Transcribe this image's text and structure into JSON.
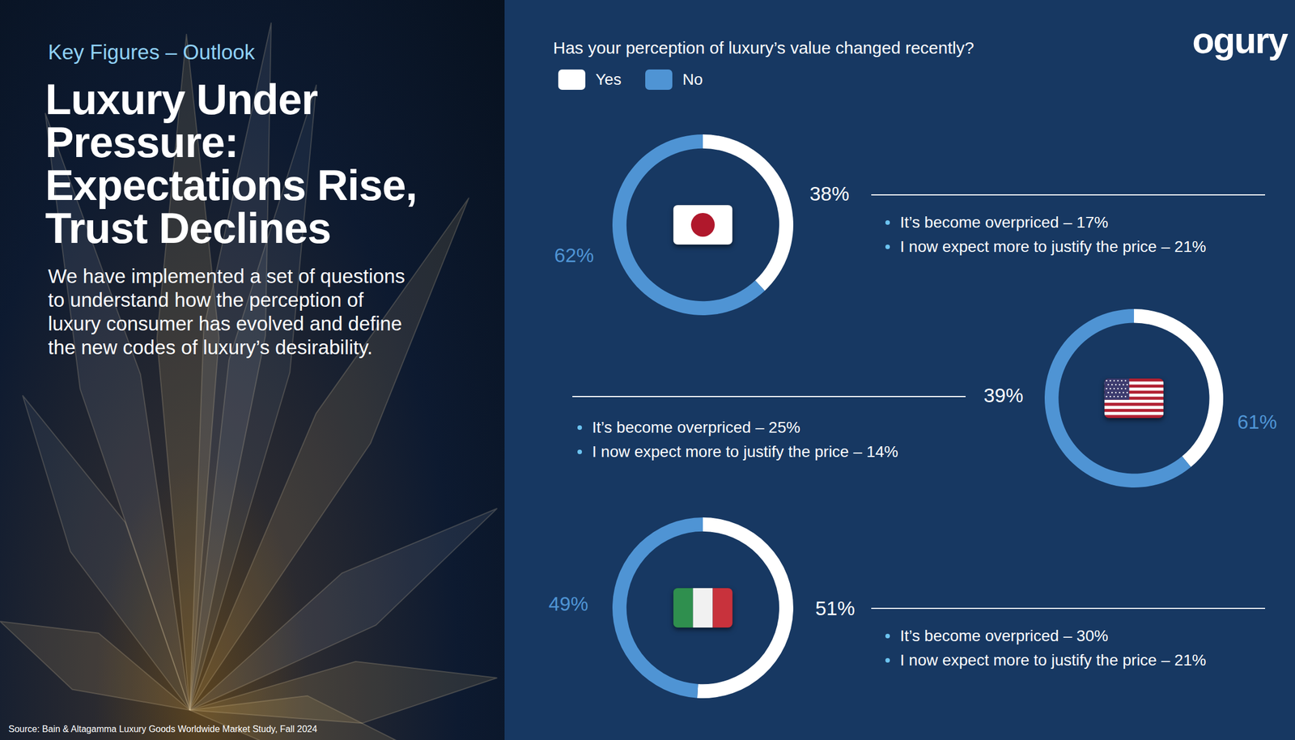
{
  "header": {
    "kicker": "Key Figures – Outlook",
    "title": "Luxury Under Pressure: Expectations Rise, Trust Declines",
    "body": "We have implemented a set of questions to understand how the perception of luxury consumer has evolved and define the new codes of luxury’s desirability."
  },
  "brand": "ogury",
  "question": "Has your perception of luxury’s value changed recently?",
  "source": "Source: Bain & Altagamma Luxury Goods Worldwide Market Study, Fall 2024",
  "chart_data": [
    {
      "type": "pie",
      "categories": [
        "Yes",
        "No"
      ],
      "values": [
        38,
        62
      ],
      "value_labels": [
        "38%",
        "62%"
      ],
      "colors": [
        "#ffffff",
        "#4f94d4"
      ],
      "data_labels": true,
      "legend": "top left",
      "notes": [
        "It’s become overpriced – 17%",
        "I now expect more to justify the price – 21%"
      ]
    },
    {
      "type": "pie",
      "categories": [
        "Yes",
        "No"
      ],
      "values": [
        39,
        61
      ],
      "value_labels": [
        "39%",
        "61%"
      ],
      "colors": [
        "#ffffff",
        "#4f94d4"
      ],
      "data_labels": true,
      "notes": [
        "It’s become overpriced – 25%",
        "I now expect more to justify the price – 14%"
      ]
    },
    {
      "type": "pie",
      "categories": [
        "Yes",
        "No"
      ],
      "values": [
        51,
        49
      ],
      "value_labels": [
        "51%",
        "49%"
      ],
      "colors": [
        "#ffffff",
        "#4f94d4"
      ],
      "data_labels": true,
      "notes": [
        "It’s become overpriced – 30%",
        "I now expect more to justify the price – 21%"
      ]
    }
  ]
}
